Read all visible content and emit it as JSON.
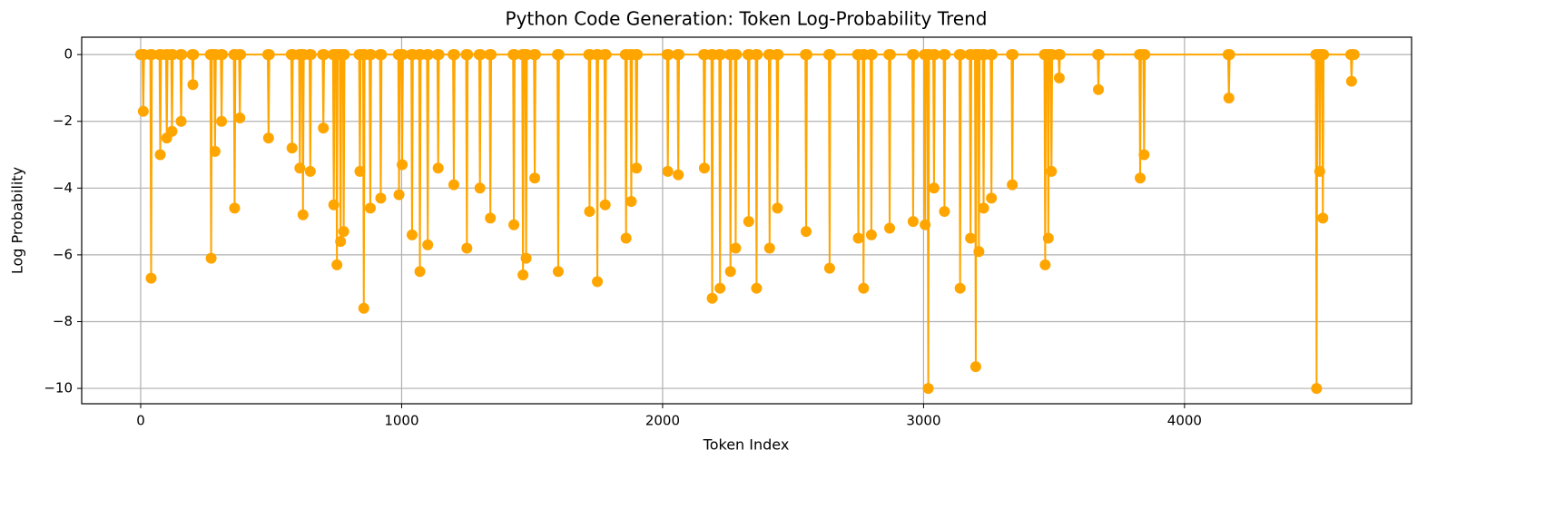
{
  "chart_data": {
    "type": "line",
    "title": "Python Code Generation: Token Log-Probability Trend",
    "xlabel": "Token Index",
    "ylabel": "Log Probability",
    "xlim": [
      -226,
      4870
    ],
    "ylim": [
      -10.46,
      0.52
    ],
    "xticks": [
      0,
      1000,
      2000,
      3000,
      4000
    ],
    "yticks": [
      0,
      {
        "value": -2,
        "label": "−2"
      },
      {
        "value": -4,
        "label": "−4"
      },
      {
        "value": -6,
        "label": "−6"
      },
      {
        "value": -8,
        "label": "−8"
      },
      {
        "value": -10,
        "label": "−10"
      }
    ],
    "grid": true,
    "series": [
      {
        "color": "#ffa500",
        "x": [
          0,
          7,
          10,
          13,
          37,
          40,
          43,
          72,
          75,
          78,
          97,
          100,
          103,
          117,
          120,
          123,
          152,
          155,
          158,
          197,
          200,
          203,
          267,
          270,
          273,
          282,
          285,
          288,
          307,
          310,
          313,
          357,
          360,
          363,
          377,
          380,
          383,
          487,
          490,
          493,
          577,
          580,
          583,
          607,
          610,
          613,
          619,
          622,
          625,
          647,
          650,
          653,
          697,
          700,
          703,
          737,
          740,
          743,
          749,
          752,
          755,
          763,
          766,
          769,
          775,
          778,
          781,
          837,
          840,
          843,
          852,
          855,
          858,
          877,
          880,
          883,
          917,
          920,
          923,
          987,
          990,
          993,
          999,
          1002,
          1005,
          1037,
          1040,
          1043,
          1067,
          1070,
          1073,
          1097,
          1100,
          1103,
          1137,
          1140,
          1143,
          1197,
          1200,
          1203,
          1247,
          1250,
          1253,
          1297,
          1300,
          1303,
          1337,
          1340,
          1343,
          1427,
          1430,
          1433,
          1462,
          1465,
          1468,
          1474,
          1477,
          1480,
          1507,
          1510,
          1513,
          1597,
          1600,
          1603,
          1717,
          1720,
          1723,
          1747,
          1750,
          1753,
          1777,
          1780,
          1783,
          1857,
          1860,
          1863,
          1877,
          1880,
          1883,
          1897,
          1900,
          1903,
          2017,
          2020,
          2023,
          2057,
          2060,
          2063,
          2157,
          2160,
          2163,
          2187,
          2190,
          2193,
          2217,
          2220,
          2223,
          2257,
          2260,
          2263,
          2277,
          2280,
          2283,
          2327,
          2330,
          2333,
          2357,
          2360,
          2363,
          2407,
          2410,
          2413,
          2437,
          2440,
          2443,
          2547,
          2550,
          2553,
          2637,
          2640,
          2643,
          2747,
          2750,
          2753,
          2767,
          2770,
          2773,
          2797,
          2800,
          2803,
          2867,
          2870,
          2873,
          2957,
          2960,
          2963,
          3003,
          3006,
          3009,
          3015,
          3018,
          3021,
          3037,
          3040,
          3043,
          3077,
          3080,
          3083,
          3137,
          3140,
          3143,
          3177,
          3180,
          3183,
          3197,
          3200,
          3203,
          3209,
          3212,
          3215,
          3227,
          3230,
          3233,
          3257,
          3260,
          3263,
          3337,
          3340,
          3343,
          3463,
          3466,
          3469,
          3475,
          3478,
          3481,
          3487,
          3490,
          3493,
          3517,
          3520,
          3523,
          3667,
          3670,
          3673,
          3827,
          3830,
          3833,
          3842,
          3845,
          3848,
          4167,
          4170,
          4173,
          4503,
          4506,
          4509,
          4515,
          4518,
          4521,
          4527,
          4530,
          4533,
          4637,
          4640,
          4643,
          4650
        ],
        "values": [
          0,
          0,
          -1.7,
          0,
          0,
          -6.7,
          0,
          0,
          -3.0,
          0,
          0,
          -2.5,
          0,
          0,
          -2.3,
          0,
          0,
          -2.0,
          0,
          0,
          -0.9,
          0,
          0,
          -6.1,
          0,
          0,
          -2.9,
          0,
          0,
          -2.0,
          0,
          0,
          -4.6,
          0,
          0,
          -1.9,
          0,
          0,
          -2.5,
          0,
          0,
          -2.8,
          0,
          0,
          -3.4,
          0,
          0,
          -4.8,
          0,
          0,
          -3.5,
          0,
          0,
          -2.2,
          0,
          0,
          -4.5,
          0,
          0,
          -6.3,
          0,
          0,
          -5.6,
          0,
          0,
          -5.3,
          0,
          0,
          -3.5,
          0,
          0,
          -7.6,
          0,
          0,
          -4.6,
          0,
          0,
          -4.3,
          0,
          0,
          -4.2,
          0,
          0,
          -3.3,
          0,
          0,
          -5.4,
          0,
          0,
          -6.5,
          0,
          0,
          -5.7,
          0,
          0,
          -3.4,
          0,
          0,
          -3.9,
          0,
          0,
          -5.8,
          0,
          0,
          -4.0,
          0,
          0,
          -4.9,
          0,
          0,
          -5.1,
          0,
          0,
          -6.6,
          0,
          0,
          -6.1,
          0,
          0,
          -3.7,
          0,
          0,
          -6.5,
          0,
          0,
          -4.7,
          0,
          0,
          -6.8,
          0,
          0,
          -4.5,
          0,
          0,
          -5.5,
          0,
          0,
          -4.4,
          0,
          0,
          -3.4,
          0,
          0,
          -3.5,
          0,
          0,
          -3.6,
          0,
          0,
          -3.4,
          0,
          0,
          -7.3,
          0,
          0,
          -7.0,
          0,
          0,
          -6.5,
          0,
          0,
          -5.8,
          0,
          0,
          -5.0,
          0,
          0,
          -7.0,
          0,
          0,
          -5.8,
          0,
          0,
          -4.6,
          0,
          0,
          -5.3,
          0,
          0,
          -6.4,
          0,
          0,
          -5.5,
          0,
          0,
          -7.0,
          0,
          0,
          -5.4,
          0,
          0,
          -5.2,
          0,
          0,
          -5.0,
          0,
          0,
          -5.1,
          0,
          0,
          -10.0,
          0,
          0,
          -4.0,
          0,
          0,
          -4.7,
          0,
          0,
          -7.0,
          0,
          0,
          -5.5,
          0,
          0,
          -9.35,
          0,
          0,
          -5.9,
          0,
          0,
          -4.6,
          0,
          0,
          -4.3,
          0,
          0,
          -3.9,
          0,
          0,
          -6.3,
          0,
          0,
          -5.5,
          0,
          0,
          -3.5,
          0,
          0,
          -0.7,
          0,
          0,
          -1.05,
          0,
          0,
          -3.7,
          0,
          0,
          -3.0,
          0,
          0,
          -1.3,
          0,
          0,
          -10.0,
          0,
          0,
          -3.5,
          0,
          0,
          -4.9,
          0,
          0,
          -0.8,
          0,
          0
        ]
      }
    ]
  }
}
